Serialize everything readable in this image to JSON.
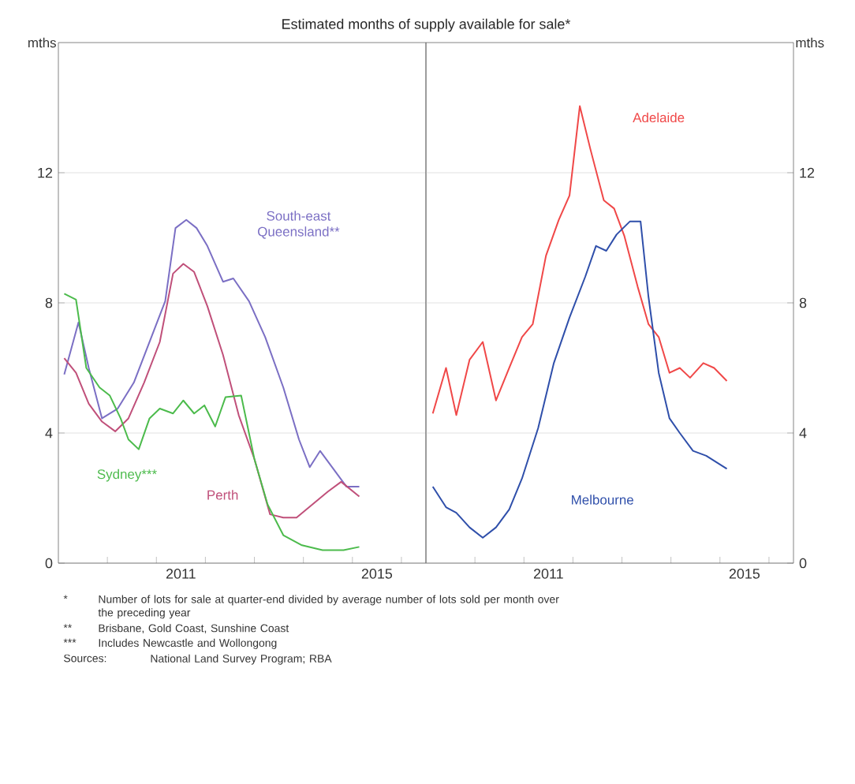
{
  "chart_data": [
    {
      "type": "line",
      "title": "Estimated months of supply available for sale*",
      "ylabel": "mths",
      "xlim": [
        2009,
        2016.5
      ],
      "ylim": [
        0,
        16
      ],
      "grid": "y",
      "xticks": [
        {
          "value": 2010,
          "label": null
        },
        {
          "value": 2011,
          "label": null
        },
        {
          "value": 2011.5,
          "label": "2011"
        },
        {
          "value": 2012,
          "label": null
        },
        {
          "value": 2013,
          "label": null
        },
        {
          "value": 2014,
          "label": null
        },
        {
          "value": 2015,
          "label": null
        },
        {
          "value": 2015.5,
          "label": "2015"
        },
        {
          "value": 2016,
          "label": null
        }
      ],
      "yticks": [
        0,
        4,
        8,
        12
      ],
      "series": [
        {
          "name": "South-east Queensland**",
          "color": "#7b6fc4",
          "x": [
            2009.12,
            2009.41,
            2009.62,
            2009.89,
            2010.21,
            2010.54,
            2010.86,
            2011.18,
            2011.39,
            2011.61,
            2011.82,
            2012.04,
            2012.36,
            2012.57,
            2012.89,
            2013.22,
            2013.59,
            2013.91,
            2014.13,
            2014.34,
            2014.61,
            2014.88,
            2015.14
          ],
          "values": [
            5.8,
            7.4,
            6.0,
            4.45,
            4.75,
            5.55,
            6.8,
            8.05,
            10.3,
            10.55,
            10.3,
            9.75,
            8.65,
            8.75,
            8.05,
            6.95,
            5.4,
            3.8,
            2.95,
            3.45,
            2.9,
            2.35,
            2.35
          ]
        },
        {
          "name": "Perth",
          "color": "#c0507a",
          "x": [
            2009.12,
            2009.36,
            2009.62,
            2009.89,
            2010.16,
            2010.43,
            2010.75,
            2011.07,
            2011.34,
            2011.55,
            2011.77,
            2012.04,
            2012.36,
            2012.68,
            2013.0,
            2013.32,
            2013.59,
            2013.86,
            2014.18,
            2014.5,
            2014.77,
            2015.14
          ],
          "values": [
            6.3,
            5.85,
            4.9,
            4.35,
            4.05,
            4.45,
            5.55,
            6.8,
            8.9,
            9.2,
            8.95,
            7.9,
            6.4,
            4.55,
            3.2,
            1.5,
            1.4,
            1.4,
            1.8,
            2.2,
            2.5,
            2.05
          ]
        },
        {
          "name": "Sydney***",
          "color": "#4cbb4c",
          "x": [
            2009.12,
            2009.36,
            2009.57,
            2009.84,
            2010.05,
            2010.27,
            2010.43,
            2010.64,
            2010.86,
            2011.07,
            2011.34,
            2011.55,
            2011.77,
            2011.98,
            2012.2,
            2012.41,
            2012.73,
            2013.0,
            2013.27,
            2013.59,
            2013.97,
            2014.39,
            2014.82,
            2015.14
          ],
          "values": [
            8.28,
            8.1,
            6.0,
            5.4,
            5.15,
            4.45,
            3.8,
            3.5,
            4.45,
            4.75,
            4.6,
            5.0,
            4.6,
            4.85,
            4.2,
            5.1,
            5.15,
            3.2,
            1.8,
            0.86,
            0.55,
            0.4,
            0.4,
            0.5
          ]
        }
      ],
      "annotations": [
        "*",
        "Number of lots for sale at quarter-end divided by average number of lots sold per month over the preceding year",
        "**",
        "Brisbane, Gold Coast, Sunshine Coast",
        "***",
        "Includes Newcastle and Wollongong",
        "Sources:",
        "National Land Survey Program; RBA"
      ]
    },
    {
      "type": "line",
      "ylabel": "mths",
      "xlim": [
        2009,
        2016.5
      ],
      "ylim": [
        0,
        16
      ],
      "grid": "y",
      "xticks": [
        {
          "value": 2010,
          "label": null
        },
        {
          "value": 2011,
          "label": null
        },
        {
          "value": 2011.5,
          "label": "2011"
        },
        {
          "value": 2012,
          "label": null
        },
        {
          "value": 2013,
          "label": null
        },
        {
          "value": 2014,
          "label": null
        },
        {
          "value": 2015,
          "label": null
        },
        {
          "value": 2015.5,
          "label": "2015"
        },
        {
          "value": 2016,
          "label": null
        }
      ],
      "yticks": [
        0,
        4,
        8,
        12
      ],
      "series": [
        {
          "name": "Adelaide",
          "color": "#f04848",
          "x": [
            2009.14,
            2009.41,
            2009.62,
            2009.89,
            2010.16,
            2010.43,
            2010.7,
            2010.96,
            2011.18,
            2011.45,
            2011.71,
            2011.93,
            2012.14,
            2012.36,
            2012.63,
            2012.84,
            2013.05,
            2013.32,
            2013.54,
            2013.75,
            2013.97,
            2014.18,
            2014.39,
            2014.66,
            2014.88,
            2015.14
          ],
          "values": [
            4.6,
            6.0,
            4.55,
            6.25,
            6.8,
            5.0,
            6.0,
            6.95,
            7.35,
            9.45,
            10.55,
            11.3,
            14.05,
            12.7,
            11.15,
            10.9,
            10.05,
            8.5,
            7.35,
            6.95,
            5.85,
            6.0,
            5.7,
            6.15,
            6.0,
            5.6
          ]
        },
        {
          "name": "Melbourne",
          "color": "#2f4faa",
          "x": [
            2009.14,
            2009.41,
            2009.62,
            2009.89,
            2010.16,
            2010.43,
            2010.7,
            2010.96,
            2011.29,
            2011.61,
            2011.93,
            2012.25,
            2012.47,
            2012.68,
            2012.89,
            2013.16,
            2013.38,
            2013.54,
            2013.75,
            2013.97,
            2014.18,
            2014.45,
            2014.72,
            2015.14
          ],
          "values": [
            2.35,
            1.72,
            1.55,
            1.1,
            0.78,
            1.1,
            1.65,
            2.6,
            4.15,
            6.15,
            7.55,
            8.8,
            9.75,
            9.6,
            10.1,
            10.5,
            10.5,
            8.2,
            5.85,
            4.45,
            4.0,
            3.45,
            3.3,
            2.9
          ]
        }
      ]
    }
  ]
}
